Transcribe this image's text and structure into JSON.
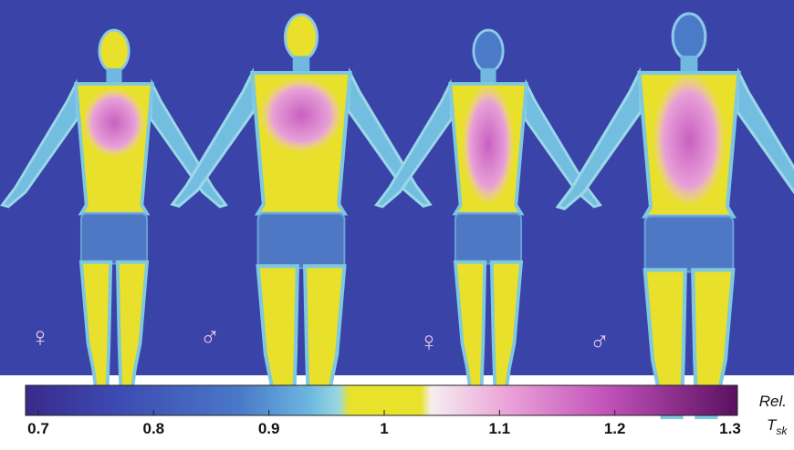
{
  "figures": [
    {
      "symbol": "♀"
    },
    {
      "symbol": "♂"
    },
    {
      "symbol": "♀"
    },
    {
      "symbol": "♂"
    }
  ],
  "colorbar": {
    "ticks": [
      0.7,
      0.8,
      0.9,
      1,
      1.1,
      1.2,
      1.3
    ],
    "label": "Rel.",
    "symbol": "T",
    "subscript": "sk"
  }
}
